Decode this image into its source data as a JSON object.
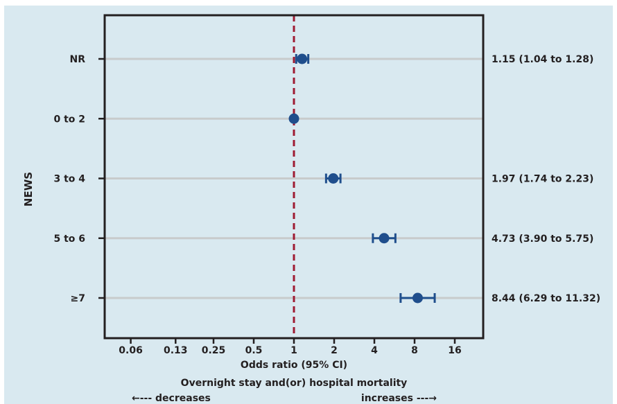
{
  "chart_data": {
    "type": "forest",
    "ylabel": "NEWS",
    "xlabel": "Odds ratio (95% CI)",
    "xlabel2": "Overnight stay and(or) hospital mortality",
    "direction_left": "←--- decreases",
    "direction_right": "increases ---→",
    "x_scale": "log2",
    "xlim": [
      0.06,
      20
    ],
    "x_ticks": [
      0.06,
      0.13,
      0.25,
      0.5,
      1,
      2,
      4,
      8,
      16
    ],
    "x_tick_labels": [
      "0.06",
      "0.13",
      "0.25",
      "0.5",
      "1",
      "2",
      "4",
      "8",
      "16"
    ],
    "reference_line": 1,
    "rows": [
      {
        "label": "NR",
        "or": 1.15,
        "lo": 1.04,
        "hi": 1.28,
        "text": "1.15 (1.04 to 1.28)"
      },
      {
        "label": "0 to 2",
        "or": 1,
        "lo": 1,
        "hi": 1,
        "text": ""
      },
      {
        "label": "3 to 4",
        "or": 1.97,
        "lo": 1.74,
        "hi": 2.23,
        "text": "1.97 (1.74 to 2.23)"
      },
      {
        "label": "5 to 6",
        "or": 4.73,
        "lo": 3.9,
        "hi": 5.75,
        "text": "4.73 (3.90 to 5.75)"
      },
      {
        "label": "≥7",
        "or": 8.44,
        "lo": 6.29,
        "hi": 11.32,
        "text": "8.44 (6.29 to 11.32)"
      }
    ],
    "grid": "horizontal",
    "colors": {
      "background": "#d9e9f0",
      "panel": "#d9e9f0",
      "marker": "#1f4e8c",
      "reference": "#9e1b32",
      "gridline": "#c8cbcc",
      "frame": "#231f20"
    }
  }
}
